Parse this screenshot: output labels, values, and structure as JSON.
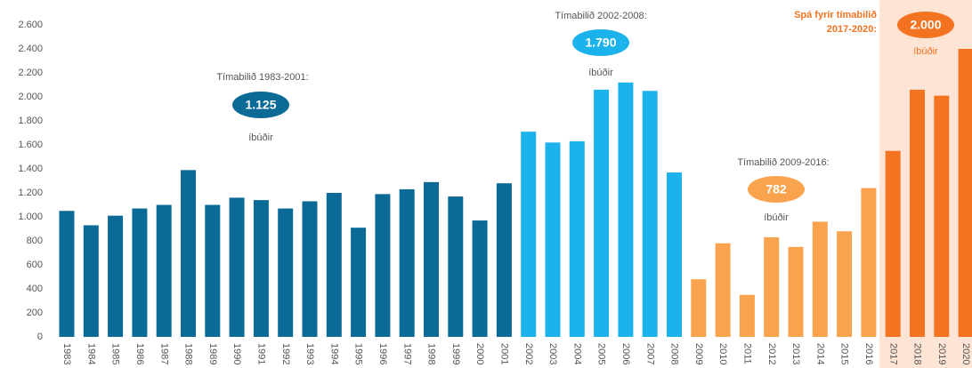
{
  "chart_data": {
    "type": "bar",
    "categories": [
      "1983",
      "1984",
      "1985",
      "1986",
      "1987",
      "1988",
      "1989",
      "1990",
      "1991",
      "1992",
      "1993",
      "1994",
      "1995",
      "1996",
      "1997",
      "1998",
      "1999",
      "2000",
      "2001",
      "2002",
      "2003",
      "2004",
      "2005",
      "2006",
      "2007",
      "2008",
      "2009",
      "2010",
      "2011",
      "2012",
      "2013",
      "2014",
      "2015",
      "2016",
      "2017",
      "2018",
      "2019",
      "2020"
    ],
    "values": [
      1050,
      930,
      1010,
      1070,
      1100,
      1390,
      1100,
      1160,
      1140,
      1070,
      1130,
      1200,
      910,
      1190,
      1230,
      1290,
      1170,
      970,
      1280,
      1710,
      1620,
      1630,
      2060,
      2120,
      2050,
      1370,
      480,
      780,
      350,
      830,
      750,
      960,
      880,
      1240,
      1550,
      2060,
      2010,
      2400
    ],
    "colors": [
      "#0b6a96",
      "#0b6a96",
      "#0b6a96",
      "#0b6a96",
      "#0b6a96",
      "#0b6a96",
      "#0b6a96",
      "#0b6a96",
      "#0b6a96",
      "#0b6a96",
      "#0b6a96",
      "#0b6a96",
      "#0b6a96",
      "#0b6a96",
      "#0b6a96",
      "#0b6a96",
      "#0b6a96",
      "#0b6a96",
      "#0b6a96",
      "#1cb2ec",
      "#1cb2ec",
      "#1cb2ec",
      "#1cb2ec",
      "#1cb2ec",
      "#1cb2ec",
      "#1cb2ec",
      "#f9a34e",
      "#f9a34e",
      "#f9a34e",
      "#f9a34e",
      "#f9a34e",
      "#f9a34e",
      "#f9a34e",
      "#f9a34e",
      "#f47320",
      "#f47320",
      "#f47320",
      "#f47320"
    ],
    "ylim": [
      0,
      2600
    ],
    "yticks": [
      0,
      {
        "value": 200,
        "label": "200"
      },
      {
        "value": 400,
        "label": "400"
      },
      {
        "value": 600,
        "label": "600"
      },
      {
        "value": 800,
        "label": "800"
      },
      {
        "value": 1000,
        "label": "1.000"
      },
      {
        "value": 1200,
        "label": "1.200"
      },
      {
        "value": 1400,
        "label": "1.400"
      },
      {
        "value": 1600,
        "label": "1.600"
      },
      {
        "value": 1800,
        "label": "1.800"
      },
      {
        "value": 2000,
        "label": "2.000"
      },
      {
        "value": 2200,
        "label": "2.200"
      },
      {
        "value": 2400,
        "label": "2.400"
      },
      {
        "value": 2600,
        "label": "2.600"
      }
    ],
    "annotations": [
      {
        "title": [
          "Tímabilið 1983-2001:"
        ],
        "value_label": "1.125",
        "unit": "íbúðir",
        "color": "#0b6a96"
      },
      {
        "title": [
          "Tímabilið 2002-2008:"
        ],
        "value_label": "1.790",
        "unit": "íbúðir",
        "color": "#1cb2ec"
      },
      {
        "title": [
          "Tímabilið 2009-2016:"
        ],
        "value_label": "782",
        "unit": "íbúðir",
        "color": "#f9a34e"
      },
      {
        "title": [
          "Spá fyrir tímabilið",
          "2017-2020:"
        ],
        "value_label": "2.000",
        "unit": "íbúðir",
        "color": "#f47320"
      }
    ]
  }
}
